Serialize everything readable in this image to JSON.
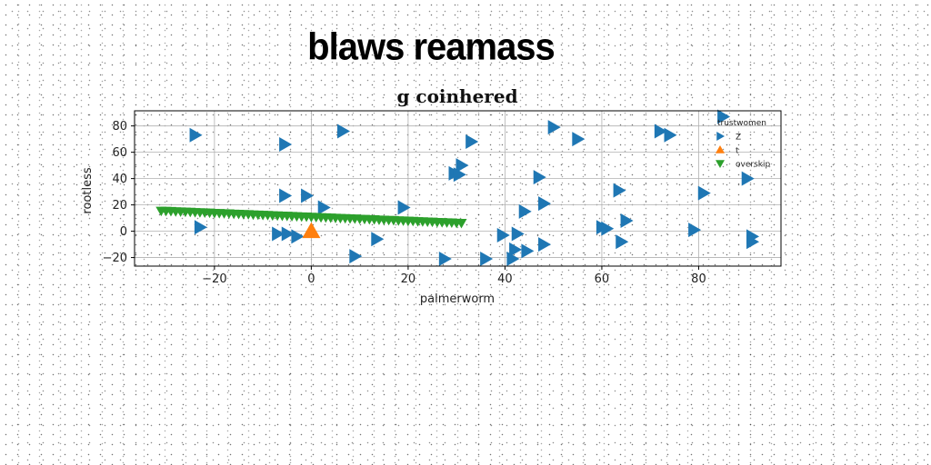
{
  "header": {
    "title": "blaws reamass"
  },
  "chart_data": {
    "type": "scatter",
    "title": "g coinhered",
    "xlabel": "palmerworm",
    "ylabel": "rootless",
    "xlim": [
      -36.5,
      97
    ],
    "ylim": [
      -26.5,
      91.5
    ],
    "xticks": [
      -20,
      0,
      20,
      40,
      60,
      80
    ],
    "yticks": [
      -20,
      0,
      20,
      40,
      60,
      80
    ],
    "grid": true,
    "legend": {
      "title": "trustwomen",
      "position": "top-right"
    },
    "series": [
      {
        "name": "Z",
        "marker": "triangle-right",
        "color": "#1f77b4",
        "points": [
          [
            -24,
            73
          ],
          [
            -5.5,
            66
          ],
          [
            6.5,
            76
          ],
          [
            33,
            68
          ],
          [
            50,
            79
          ],
          [
            55,
            70
          ],
          [
            72,
            76
          ],
          [
            74,
            73
          ],
          [
            85,
            87
          ],
          [
            31,
            50
          ],
          [
            29.5,
            44
          ],
          [
            30.5,
            43
          ],
          [
            47,
            41
          ],
          [
            90,
            40
          ],
          [
            -5.5,
            27
          ],
          [
            -1,
            27
          ],
          [
            2.5,
            18
          ],
          [
            19,
            18
          ],
          [
            44,
            15
          ],
          [
            48,
            21
          ],
          [
            63.5,
            31
          ],
          [
            81,
            29
          ],
          [
            -23,
            3
          ],
          [
            -7,
            -2
          ],
          [
            -5,
            -2
          ],
          [
            -3,
            -4
          ],
          [
            13.5,
            -6
          ],
          [
            39.5,
            -3
          ],
          [
            42,
            -14
          ],
          [
            42.5,
            -2
          ],
          [
            44.5,
            -15
          ],
          [
            48,
            -10
          ],
          [
            60,
            3
          ],
          [
            61,
            2
          ],
          [
            65,
            8
          ],
          [
            64,
            -8
          ],
          [
            79,
            1
          ],
          [
            91,
            -4
          ],
          [
            91,
            -8
          ],
          [
            9,
            -19
          ],
          [
            27.5,
            -21
          ],
          [
            36,
            -21
          ],
          [
            41.5,
            -21
          ]
        ]
      },
      {
        "name": "t",
        "marker": "triangle-up",
        "color": "#ff7f0e",
        "points": [
          [
            0,
            0
          ]
        ]
      },
      {
        "name": "overskip",
        "marker": "triangle-down",
        "color": "#2ca02c",
        "points": [
          [
            -31,
            15.5
          ],
          [
            -30,
            15.4
          ],
          [
            -29,
            15.3
          ],
          [
            -28,
            15.1
          ],
          [
            -27,
            15.0
          ],
          [
            -26,
            14.8
          ],
          [
            -25,
            14.7
          ],
          [
            -24,
            14.5
          ],
          [
            -23,
            14.4
          ],
          [
            -22,
            14.2
          ],
          [
            -21,
            14.1
          ],
          [
            -20,
            13.9
          ],
          [
            -19,
            13.8
          ],
          [
            -18,
            13.6
          ],
          [
            -17,
            13.5
          ],
          [
            -16,
            13.3
          ],
          [
            -15,
            13.2
          ],
          [
            -14,
            13.0
          ],
          [
            -13,
            12.9
          ],
          [
            -12,
            12.7
          ],
          [
            -11,
            12.6
          ],
          [
            -10,
            12.4
          ],
          [
            -9,
            12.3
          ],
          [
            -8,
            12.1
          ],
          [
            -7,
            12.0
          ],
          [
            -6,
            11.8
          ],
          [
            -5,
            11.7
          ],
          [
            -4,
            11.5
          ],
          [
            -3,
            11.4
          ],
          [
            -2,
            11.2
          ],
          [
            -1,
            11.1
          ],
          [
            0,
            10.9
          ],
          [
            1,
            10.8
          ],
          [
            2,
            10.6
          ],
          [
            3,
            10.5
          ],
          [
            4,
            10.3
          ],
          [
            5,
            10.2
          ],
          [
            6,
            10.0
          ],
          [
            7,
            9.9
          ],
          [
            8,
            9.7
          ],
          [
            9,
            9.6
          ],
          [
            10,
            9.4
          ],
          [
            11,
            9.3
          ],
          [
            12,
            9.1
          ],
          [
            13,
            9.0
          ],
          [
            14,
            8.8
          ],
          [
            15,
            8.7
          ],
          [
            16,
            8.5
          ],
          [
            17,
            8.4
          ],
          [
            18,
            8.2
          ],
          [
            19,
            8.1
          ],
          [
            20,
            7.9
          ],
          [
            21,
            7.8
          ],
          [
            22,
            7.6
          ],
          [
            23,
            7.5
          ],
          [
            24,
            7.3
          ],
          [
            25,
            7.2
          ],
          [
            26,
            7.0
          ],
          [
            27,
            6.9
          ],
          [
            28,
            6.7
          ],
          [
            29,
            6.6
          ],
          [
            30,
            6.4
          ],
          [
            31,
            6.3
          ]
        ]
      }
    ]
  }
}
